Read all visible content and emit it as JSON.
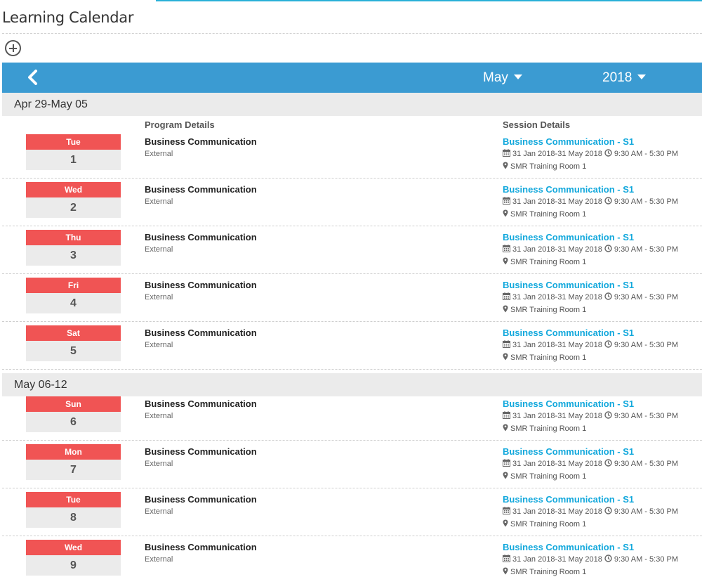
{
  "page": {
    "title": "Learning Calendar"
  },
  "toolbar": {
    "add_icon": "plus-circle-icon"
  },
  "calendar": {
    "prev_icon": "chevron-left-icon",
    "month": "May",
    "year": "2018",
    "accent": "#3b9bd2"
  },
  "columns": {
    "program": "Program Details",
    "session": "Session Details"
  },
  "colors": {
    "day_badge": "#f05454",
    "session_link": "#12a8dc"
  },
  "weeks": [
    {
      "label": "Apr 29-May 05",
      "days": [
        {
          "day": "Tue",
          "date": "1",
          "program": "Business Communication",
          "type": "External",
          "session": "Business Communication - S1",
          "dates": "31 Jan 2018-31 May 2018",
          "time": "9:30 AM - 5:30 PM",
          "room": "SMR Training Room 1"
        },
        {
          "day": "Wed",
          "date": "2",
          "program": "Business Communication",
          "type": "External",
          "session": "Business Communication - S1",
          "dates": "31 Jan 2018-31 May 2018",
          "time": "9:30 AM - 5:30 PM",
          "room": "SMR Training Room 1"
        },
        {
          "day": "Thu",
          "date": "3",
          "program": "Business Communication",
          "type": "External",
          "session": "Business Communication - S1",
          "dates": "31 Jan 2018-31 May 2018",
          "time": "9:30 AM - 5:30 PM",
          "room": "SMR Training Room 1"
        },
        {
          "day": "Fri",
          "date": "4",
          "program": "Business Communication",
          "type": "External",
          "session": "Business Communication - S1",
          "dates": "31 Jan 2018-31 May 2018",
          "time": "9:30 AM - 5:30 PM",
          "room": "SMR Training Room 1"
        },
        {
          "day": "Sat",
          "date": "5",
          "program": "Business Communication",
          "type": "External",
          "session": "Business Communication - S1",
          "dates": "31 Jan 2018-31 May 2018",
          "time": "9:30 AM - 5:30 PM",
          "room": "SMR Training Room 1"
        }
      ]
    },
    {
      "label": "May 06-12",
      "days": [
        {
          "day": "Sun",
          "date": "6",
          "program": "Business Communication",
          "type": "External",
          "session": "Business Communication - S1",
          "dates": "31 Jan 2018-31 May 2018",
          "time": "9:30 AM - 5:30 PM",
          "room": "SMR Training Room 1"
        },
        {
          "day": "Mon",
          "date": "7",
          "program": "Business Communication",
          "type": "External",
          "session": "Business Communication - S1",
          "dates": "31 Jan 2018-31 May 2018",
          "time": "9:30 AM - 5:30 PM",
          "room": "SMR Training Room 1"
        },
        {
          "day": "Tue",
          "date": "8",
          "program": "Business Communication",
          "type": "External",
          "session": "Business Communication - S1",
          "dates": "31 Jan 2018-31 May 2018",
          "time": "9:30 AM - 5:30 PM",
          "room": "SMR Training Room 1"
        },
        {
          "day": "Wed",
          "date": "9",
          "program": "Business Communication",
          "type": "External",
          "session": "Business Communication - S1",
          "dates": "31 Jan 2018-31 May 2018",
          "time": "9:30 AM - 5:30 PM",
          "room": "SMR Training Room 1"
        }
      ]
    }
  ]
}
